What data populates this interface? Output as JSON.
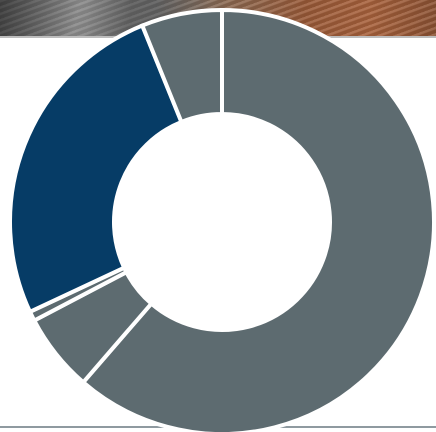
{
  "background": {
    "photo_strip": "photo-banner",
    "watermark_text": ""
  },
  "colors": {
    "slate": "#5d6b70",
    "navy": "#063c66",
    "separator": "#ffffff"
  },
  "chart_data": {
    "type": "pie",
    "variant": "donut",
    "title": "",
    "legend": "none",
    "data_labels": false,
    "start_angle_deg": 0,
    "direction": "clockwise",
    "slices": [
      {
        "value": 67.0,
        "color": "#5d6b70"
      },
      {
        "value": 6.5,
        "color": "#5d6b70"
      },
      {
        "value": 0.8,
        "color": "#5d6b70"
      },
      {
        "value": 28.2,
        "color": "#063c66"
      },
      {
        "value": 6.7,
        "color": "#5d6b70"
      }
    ]
  }
}
